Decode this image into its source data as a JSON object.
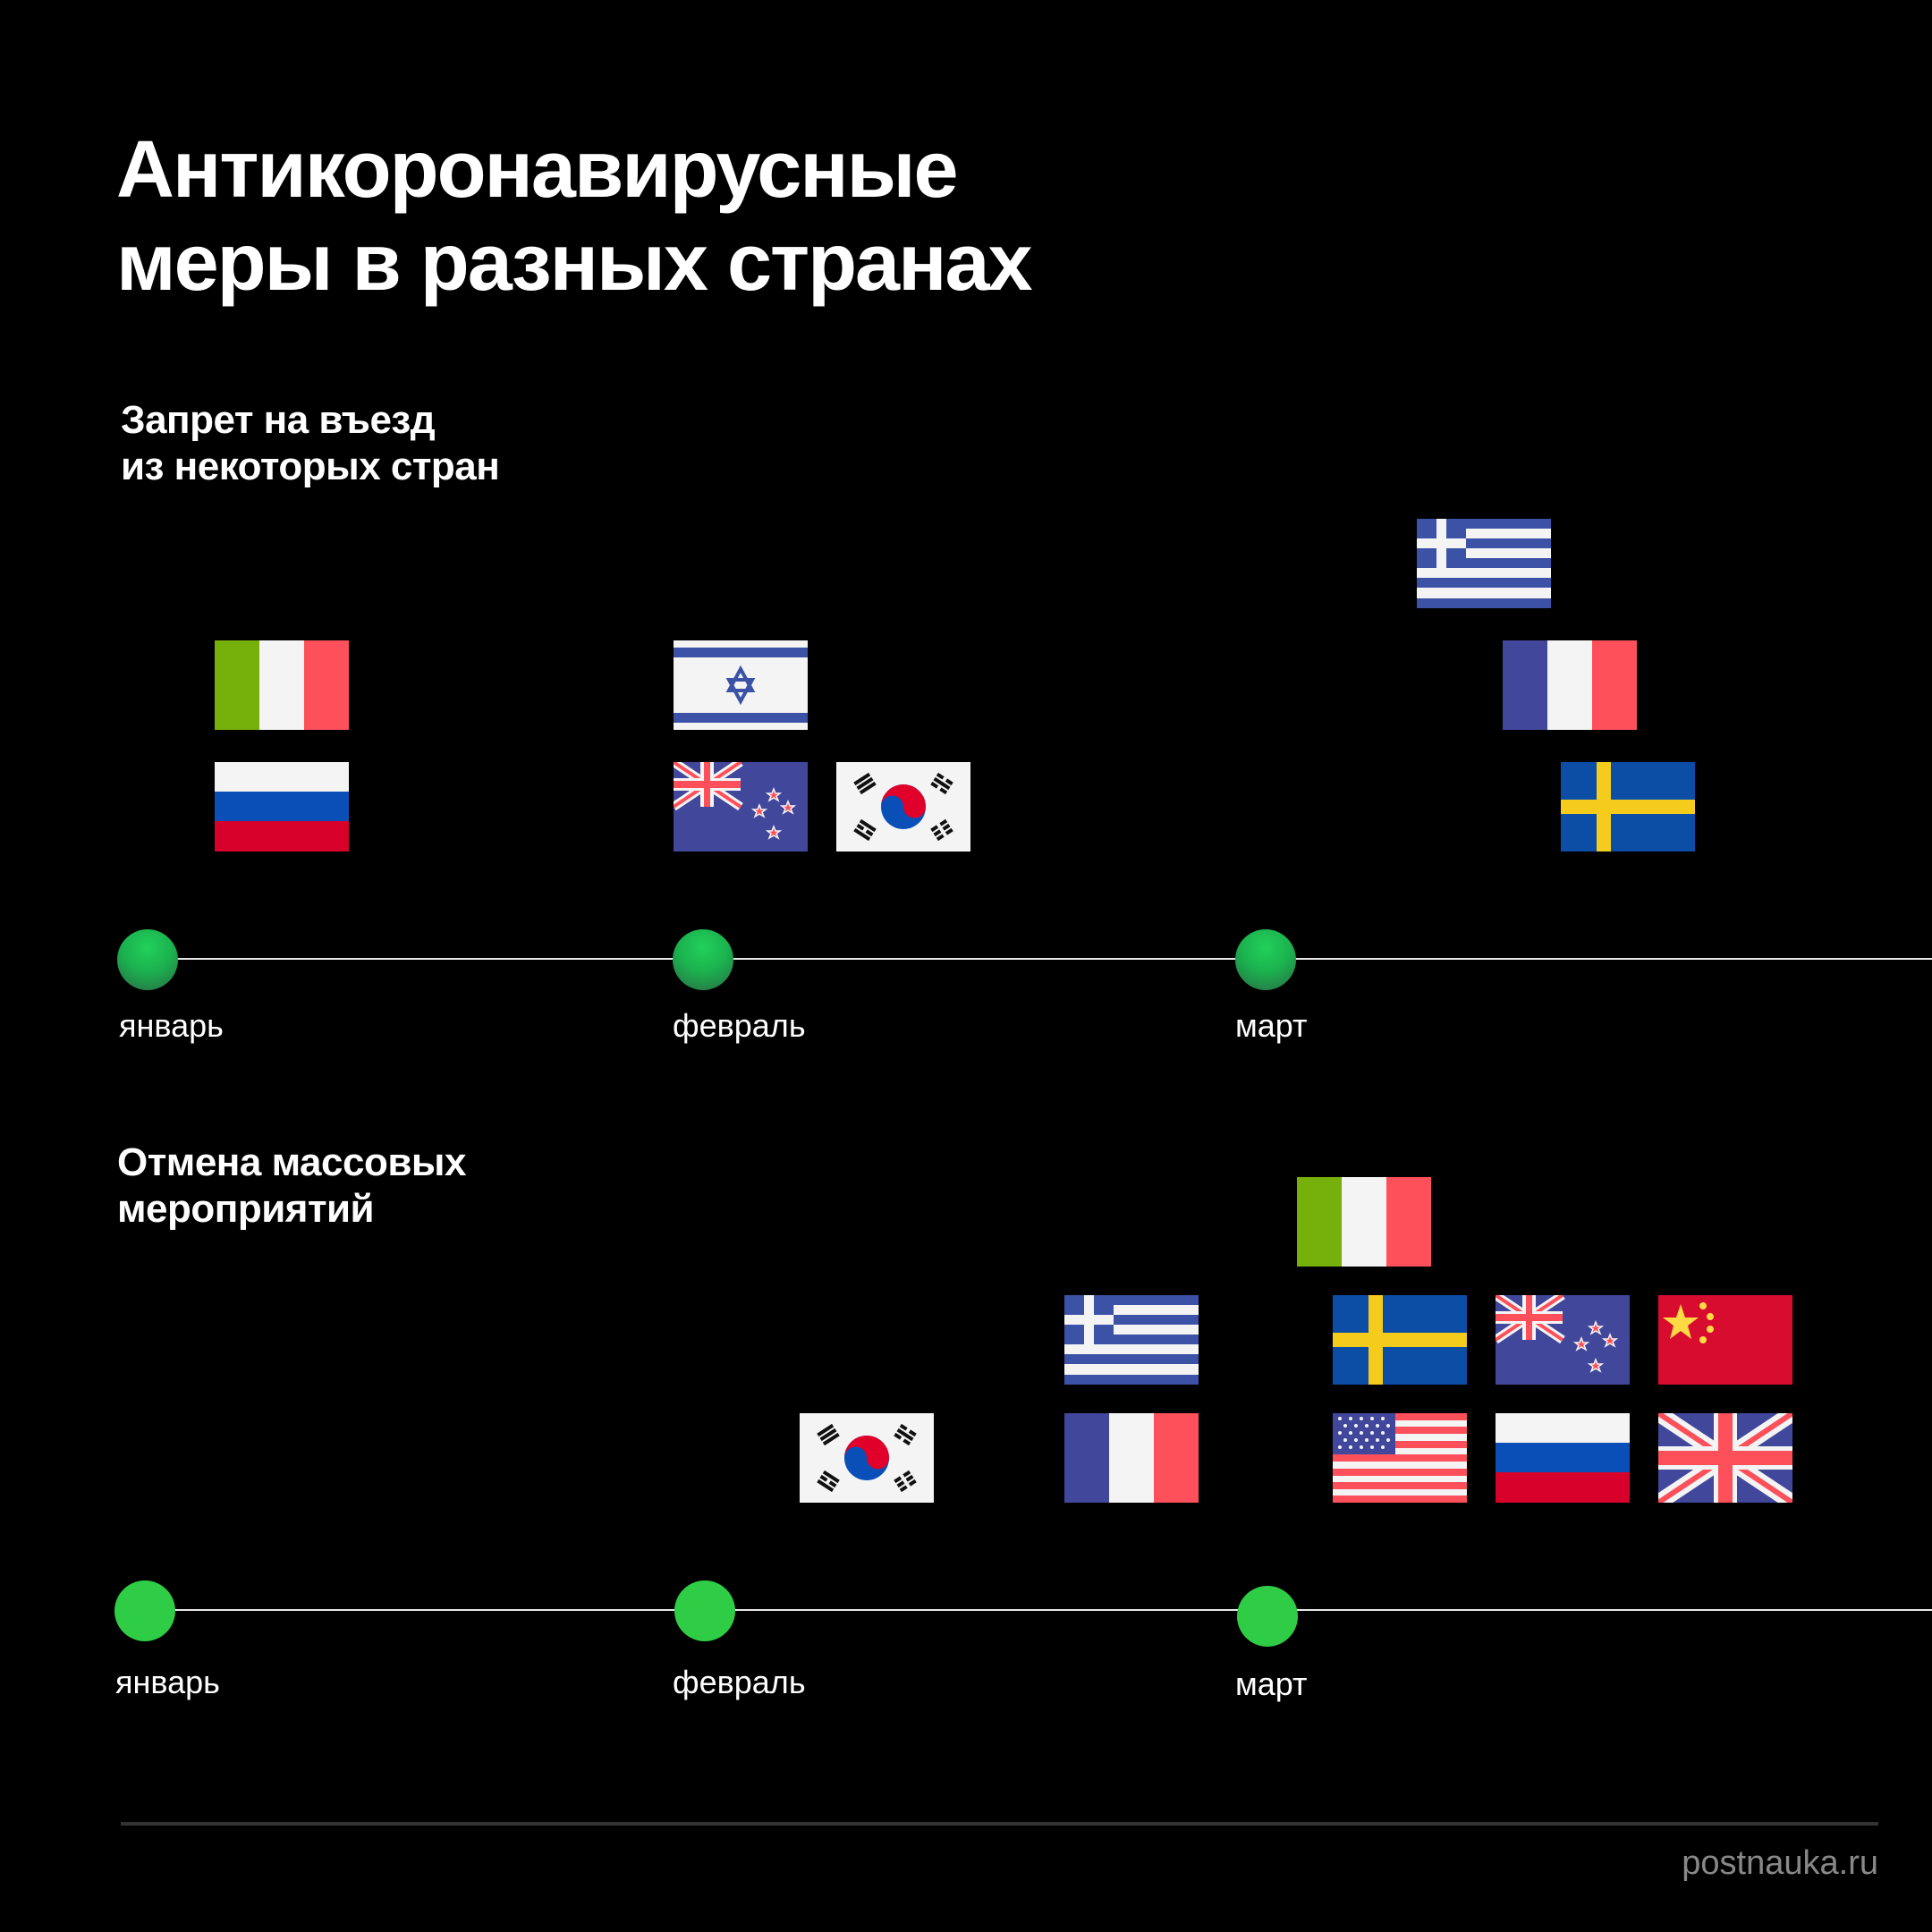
{
  "title": {
    "line1": "Антикоронавирусные",
    "line2": "меры в разных странах"
  },
  "section1": {
    "title_line1": "Запрет на въезд",
    "title_line2": "из некоторых стран",
    "months": [
      "январь",
      "февраль",
      "март"
    ],
    "flags": {
      "january": [
        "italy",
        "russia"
      ],
      "february": [
        "israel",
        "new-zealand",
        "south-korea"
      ],
      "march": [
        "greece",
        "france",
        "sweden"
      ]
    }
  },
  "section2": {
    "title_line1": "Отмена массовых",
    "title_line2": "мероприятий",
    "months": [
      "январь",
      "февраль",
      "март"
    ],
    "flags": {
      "february": [
        "south-korea"
      ],
      "late_february": [
        "greece",
        "france"
      ],
      "march": [
        "italy",
        "sweden",
        "new-zealand",
        "china",
        "usa",
        "russia",
        "united-kingdom"
      ]
    }
  },
  "footer": {
    "site": "postnauka.ru"
  },
  "colors": {
    "background": "#000000",
    "dot_green": "#2fcc45",
    "line": "#e8e8e8",
    "footer_text": "#888888"
  }
}
